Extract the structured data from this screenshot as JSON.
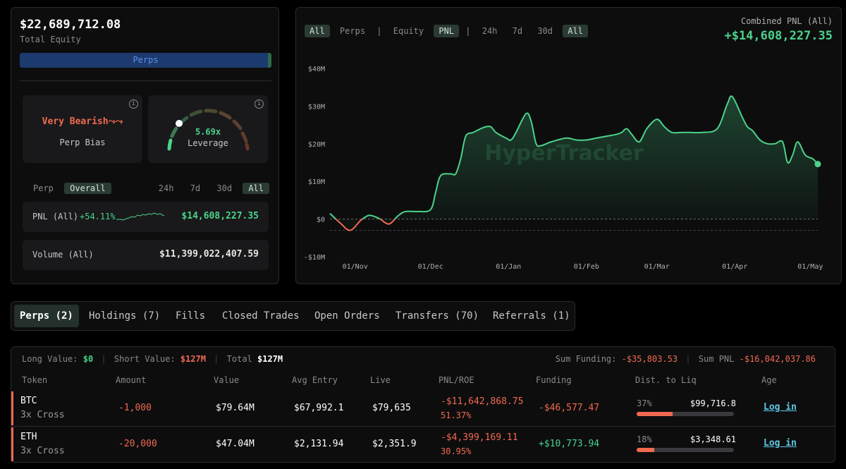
{
  "account": {
    "total_equity": "$22,689,712.08",
    "total_equity_label": "Total Equity",
    "allocation_label": "Perps",
    "perps_share": 0.985
  },
  "bias": {
    "text": "Very Bearish⤳⤳",
    "label": "Perp Bias"
  },
  "leverage": {
    "value": "5.69x",
    "label": "Leverage"
  },
  "left_filters": {
    "scope": [
      "Perp",
      "Overall"
    ],
    "active_scope": "Overall",
    "periods": [
      "24h",
      "7d",
      "30d",
      "All"
    ],
    "active_period": "All"
  },
  "pnl_card": {
    "label": "PNL (All)",
    "percent": "+54.11%",
    "value": "$14,608,227.35"
  },
  "volume_card": {
    "label": "Volume (All)",
    "value": "$11,399,022,407.59"
  },
  "chart_header": {
    "filters": [
      "All",
      "Perps",
      "|",
      "Equity",
      "PNL",
      "|",
      "24h",
      "7d",
      "30d",
      "All"
    ],
    "active": [
      0,
      4,
      9
    ],
    "combined_label": "Combined PNL (All)",
    "combined_value": "+$14,608,227.35"
  },
  "chart_data": {
    "type": "area",
    "title": "",
    "xlabel": "",
    "ylabel": "",
    "y_tick_labels": [
      "$40M",
      "$30M",
      "$20M",
      "$10M",
      "$0",
      "-$10M"
    ],
    "y_ticks": [
      40,
      30,
      20,
      10,
      0,
      -10
    ],
    "x_tick_labels": [
      "01/Nov",
      "01/Dec",
      "01/Jan",
      "01/Feb",
      "01/Mar",
      "01/Apr",
      "01/May"
    ],
    "x_ticks": [
      10,
      40,
      71,
      102,
      130,
      161,
      191
    ],
    "ylim": [
      -10,
      40
    ],
    "xlim": [
      0,
      194
    ],
    "y_unit": "$M",
    "series": [
      {
        "x": [
          0,
          4,
          8,
          12,
          14,
          16,
          20,
          22,
          24,
          27,
          30,
          35,
          40,
          42,
          44,
          48,
          50,
          52,
          54,
          57,
          60,
          62,
          64,
          66,
          70,
          72,
          74,
          78,
          80,
          82,
          84,
          88,
          94,
          98,
          102,
          106,
          110,
          114,
          116,
          118,
          120,
          123,
          126,
          130,
          133,
          136,
          140,
          143,
          148,
          154,
          158,
          160,
          164,
          166,
          168,
          171,
          174,
          177,
          180,
          182,
          184,
          186,
          189,
          192,
          194
        ],
        "values": [
          1.5,
          -1.0,
          -3.0,
          -0.5,
          0.5,
          1.0,
          0.0,
          -1.0,
          -1.2,
          0.8,
          2.0,
          2.0,
          2.5,
          7.0,
          11.5,
          12.0,
          12.0,
          16.0,
          22.0,
          23.0,
          24.0,
          24.5,
          24.5,
          23.0,
          21.5,
          21.0,
          23.0,
          28.0,
          26.0,
          20.0,
          19.5,
          20.5,
          21.5,
          21.0,
          21.0,
          21.5,
          22.0,
          22.5,
          23.0,
          24.0,
          22.5,
          20.5,
          24.0,
          26.5,
          24.5,
          23.0,
          23.0,
          23.0,
          23.0,
          24.0,
          30.5,
          32.5,
          27.0,
          24.5,
          23.5,
          21.0,
          20.0,
          20.0,
          20.5,
          15.0,
          17.0,
          20.5,
          17.0,
          16.0,
          14.6
        ]
      }
    ],
    "zero_line": true,
    "grid": false,
    "watermark": "HyperTracker"
  },
  "tabs": [
    {
      "label": "Perps (2)",
      "active": true
    },
    {
      "label": "Holdings (7)",
      "active": false
    },
    {
      "label": "Fills",
      "active": false
    },
    {
      "label": "Closed Trades",
      "active": false
    },
    {
      "label": "Open Orders",
      "active": false
    },
    {
      "label": "Transfers (70)",
      "active": false
    },
    {
      "label": "Referrals (1)",
      "active": false
    }
  ],
  "summary": {
    "long_label": "Long Value:",
    "long_value": "$0",
    "short_label": "Short Value:",
    "short_value": "$127M",
    "total_label": "Total",
    "total_value": "$127M",
    "funding_label": "Sum Funding:",
    "funding_value": "-$35,803.53",
    "sum_pnl_label": "Sum PNL",
    "sum_pnl_value": "-$16,042,037.86"
  },
  "table": {
    "headers": [
      "Token",
      "Amount",
      "Value",
      "Avg Entry",
      "Live",
      "PNL/ROE",
      "Funding",
      "Dist. to Liq",
      "Age"
    ],
    "rows": [
      {
        "token": "BTC",
        "mode": "3x Cross",
        "amount": "-1,000",
        "value": "$79.64M",
        "avg_entry": "$67,992.1",
        "live": "$79,635",
        "pnl": "-$11,642,868.75",
        "roe": "51.37%",
        "funding": "-$46,577.47",
        "liq_pct": "37%",
        "liq_price": "$99,716.8",
        "liq_fill": 0.37,
        "age": "Log in"
      },
      {
        "token": "ETH",
        "mode": "3x Cross",
        "amount": "-20,000",
        "value": "$47.04M",
        "avg_entry": "$2,131.94",
        "live": "$2,351.9",
        "pnl": "-$4,399,169.11",
        "roe": "30.95%",
        "funding": "+$10,773.94",
        "liq_pct": "18%",
        "liq_price": "$3,348.61",
        "liq_fill": 0.18,
        "age": "Log in"
      }
    ]
  },
  "colors": {
    "accent_green": "#4bd38a",
    "accent_red": "#f06a4f",
    "perps_blue": "#1d3a6e"
  }
}
